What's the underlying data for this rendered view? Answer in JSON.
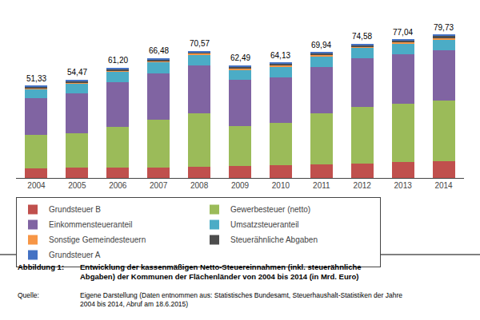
{
  "chart_data": {
    "type": "bar",
    "stacked": true,
    "categories": [
      "2004",
      "2005",
      "2006",
      "2007",
      "2008",
      "2009",
      "2010",
      "2011",
      "2012",
      "2013",
      "2014"
    ],
    "series": [
      {
        "name": "Grundsteuer B",
        "color": "#C0504D",
        "values": [
          5.5,
          5.5989721,
          5.90579,
          5.9721515,
          6.2991074,
          6.602113,
          6.9989086,
          7.4989278,
          8.1989007,
          8.7988579,
          9.2988337
        ]
      },
      {
        "name": "Gewerbesteuer (netto)",
        "color": "#9BBB59",
        "values": [
          18.5,
          19.4964207,
          22.5220805,
          26.3770026,
          29.4958204,
          22.5072035,
          23.4963361,
          28.4959257,
          31.4957769,
          32.495782,
          33.9957361
        ]
      },
      {
        "name": "Einkommensteueranteil",
        "color": "#8064A2",
        "values": [
          20.5,
          21.9959618,
          25.0245339,
          25.8793233,
          26.9961746,
          25.5081639,
          25.4960243,
          25.9962831,
          26.9963802,
          27.4964309,
          27.9964886
        ]
      },
      {
        "name": "Umsatzsteueranteil",
        "color": "#4BACC6",
        "values": [
          5.2,
          5.6989537,
          6.0058881,
          6.4698308,
          5.9991499,
          5.7018249,
          5.9990645,
          5.9991422,
          5.9991956,
          5.9992213,
          5.9992476
        ]
      },
      {
        "name": "Sonstige Gemeindesteuern",
        "color": "#F79646",
        "values": [
          0.5,
          0.4999082,
          0.5004907,
          0.4976793,
          0.5499221,
          0.5501761,
          0.5499142,
          0.5999142,
          0.5999196,
          0.5999221,
          0.5999248
        ]
      },
      {
        "name": "Steuerähnliche Abgaben",
        "color": "#4D4D4D",
        "values": [
          0.73,
          0.7698587,
          0.8007851,
          0.8261476,
          0.7498937,
          1.140365,
          1.0998285,
          0.8198828,
          0.7299021,
          1.0698611,
          1.2298458
        ]
      },
      {
        "name": "Grundsteuer A",
        "color": "#4472C4",
        "values": [
          0.4,
          0.4099247,
          0.4404318,
          0.457865,
          0.479932,
          0.4801537,
          0.4899236,
          0.5299242,
          0.5599249,
          0.5799247,
          0.6099235
        ]
      }
    ],
    "totals": [
      51.33,
      54.47,
      61.2,
      66.48,
      70.57,
      62.49,
      64.13,
      69.94,
      74.58,
      77.04,
      79.73
    ],
    "total_labels": [
      "51,33",
      "54,47",
      "61,20",
      "66,48",
      "70,57",
      "62,49",
      "64,13",
      "69,94",
      "74,58",
      "77,04",
      "79,73"
    ],
    "ylim": [
      0,
      88
    ],
    "grid": false,
    "tick_labels": "x",
    "legend": "bottom",
    "annotations": [
      {
        "label": "Abbildung 1:",
        "text": "Entwicklung der kassenmäßigen Netto-Steuereinnahmen (inkl. steuerähnliche\nAbgaben) der Kommunen der Flächenländer von 2004 bis 2014 (in Mrd. Euro)"
      },
      {
        "label": "Quelle:",
        "text": "Eigene Darstellung (Daten entnommen aus: Statistisches Bundesamt, Steuerhaushalt-Statistiken der Jahre\n2004 bis 2014, Abruf am 18.6.2015)"
      }
    ]
  }
}
